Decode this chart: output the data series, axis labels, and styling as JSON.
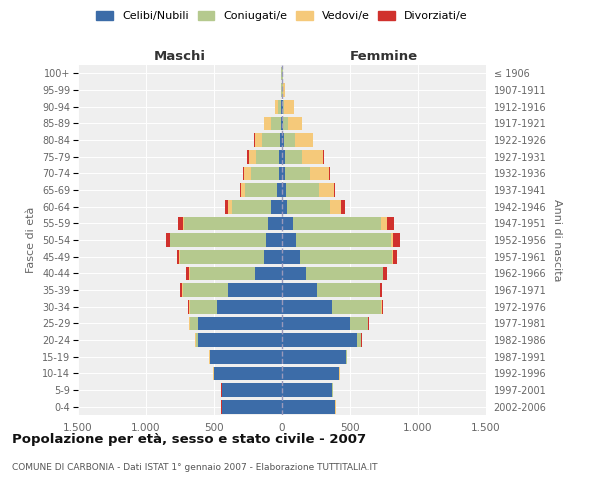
{
  "age_groups": [
    "0-4",
    "5-9",
    "10-14",
    "15-19",
    "20-24",
    "25-29",
    "30-34",
    "35-39",
    "40-44",
    "45-49",
    "50-54",
    "55-59",
    "60-64",
    "65-69",
    "70-74",
    "75-79",
    "80-84",
    "85-89",
    "90-94",
    "95-99",
    "100+"
  ],
  "birth_years": [
    "2002-2006",
    "1997-2001",
    "1992-1996",
    "1987-1991",
    "1982-1986",
    "1977-1981",
    "1972-1976",
    "1967-1971",
    "1962-1966",
    "1957-1961",
    "1952-1956",
    "1947-1951",
    "1942-1946",
    "1937-1941",
    "1932-1936",
    "1927-1931",
    "1922-1926",
    "1917-1921",
    "1912-1916",
    "1907-1911",
    "≤ 1906"
  ],
  "colors": {
    "celibi": "#3c6ca8",
    "coniugati": "#b5c98e",
    "vedovi": "#f5c97a",
    "divorziati": "#d0312d"
  },
  "males": {
    "celibi": [
      440,
      440,
      500,
      530,
      620,
      620,
      480,
      400,
      200,
      130,
      120,
      100,
      80,
      40,
      25,
      20,
      15,
      10,
      5,
      3,
      2
    ],
    "coniugati": [
      2,
      2,
      2,
      3,
      15,
      60,
      200,
      330,
      480,
      620,
      700,
      620,
      290,
      230,
      200,
      170,
      130,
      70,
      25,
      3,
      2
    ],
    "vedovi": [
      2,
      2,
      2,
      2,
      2,
      2,
      2,
      2,
      3,
      5,
      5,
      10,
      25,
      30,
      55,
      50,
      50,
      50,
      20,
      5,
      2
    ],
    "divorziati": [
      2,
      2,
      2,
      2,
      3,
      5,
      10,
      15,
      20,
      20,
      30,
      35,
      25,
      10,
      10,
      15,
      10,
      5,
      2,
      0,
      0
    ]
  },
  "females": {
    "celibi": [
      390,
      370,
      420,
      470,
      550,
      500,
      370,
      260,
      180,
      130,
      100,
      80,
      35,
      30,
      25,
      20,
      15,
      10,
      5,
      3,
      2
    ],
    "coniugati": [
      2,
      2,
      2,
      5,
      30,
      130,
      360,
      460,
      560,
      680,
      700,
      650,
      320,
      240,
      180,
      130,
      80,
      35,
      10,
      3,
      2
    ],
    "vedovi": [
      2,
      2,
      2,
      2,
      2,
      2,
      2,
      3,
      5,
      5,
      15,
      40,
      80,
      110,
      140,
      150,
      130,
      100,
      70,
      15,
      3
    ],
    "divorziati": [
      2,
      2,
      2,
      2,
      3,
      5,
      10,
      15,
      25,
      30,
      55,
      50,
      30,
      10,
      10,
      10,
      5,
      5,
      2,
      0,
      0
    ]
  },
  "xlim": 1500,
  "title": "Popolazione per età, sesso e stato civile - 2007",
  "subtitle": "COMUNE DI CARBONIA - Dati ISTAT 1° gennaio 2007 - Elaborazione TUTTITALIA.IT",
  "xlabel_left": "Maschi",
  "xlabel_right": "Femmine",
  "ylabel": "Fasce di età",
  "ylabel_right": "Anni di nascita",
  "legend_labels": [
    "Celibi/Nubili",
    "Coniugati/e",
    "Vedovi/e",
    "Divorziati/e"
  ],
  "xticks": [
    -1500,
    -1000,
    -500,
    0,
    500,
    1000,
    1500
  ],
  "xticklabels": [
    "1.500",
    "1.000",
    "500",
    "0",
    "500",
    "1.000",
    "1.500"
  ],
  "bg_color": "#ffffff",
  "plot_bg_color": "#efefef"
}
